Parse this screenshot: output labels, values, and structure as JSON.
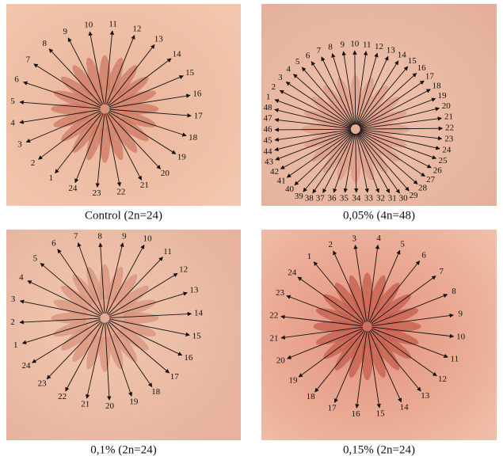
{
  "panels": [
    {
      "caption": "Control (2n=24)",
      "labels": [
        "1",
        "2",
        "3",
        "4",
        "5",
        "6",
        "7",
        "8",
        "9",
        "10",
        "11",
        "12",
        "13",
        "14",
        "15",
        "16",
        "17",
        "18",
        "19",
        "20",
        "21",
        "22",
        "23",
        "24"
      ]
    },
    {
      "caption": "0,05% (4n=48)",
      "labels": [
        "1",
        "2",
        "3",
        "4",
        "5",
        "6",
        "7",
        "8",
        "9",
        "10",
        "11",
        "12",
        "13",
        "14",
        "15",
        "16",
        "17",
        "18",
        "19",
        "20",
        "21",
        "22",
        "23",
        "24",
        "25",
        "26",
        "27",
        "28",
        "29",
        "30",
        "31",
        "32",
        "33",
        "34",
        "35",
        "36",
        "37",
        "38",
        "39",
        "40",
        "41",
        "42",
        "43",
        "44",
        "45",
        "46",
        "47",
        "48"
      ]
    },
    {
      "caption": "0,1% (2n=24)",
      "labels": [
        "1",
        "2",
        "3",
        "4",
        "5",
        "6",
        "7",
        "8",
        "9",
        "10",
        "11",
        "12",
        "13",
        "14",
        "15",
        "16",
        "17",
        "18",
        "19",
        "20",
        "21",
        "22",
        "23",
        "24"
      ]
    },
    {
      "caption": "0,15% (2n=24)",
      "labels": [
        "1",
        "2",
        "3",
        "4",
        "5",
        "6",
        "7",
        "8",
        "9",
        "10",
        "11",
        "12",
        "13",
        "14",
        "15",
        "16",
        "17",
        "18",
        "19",
        "20",
        "21",
        "22",
        "23",
        "24"
      ]
    }
  ]
}
